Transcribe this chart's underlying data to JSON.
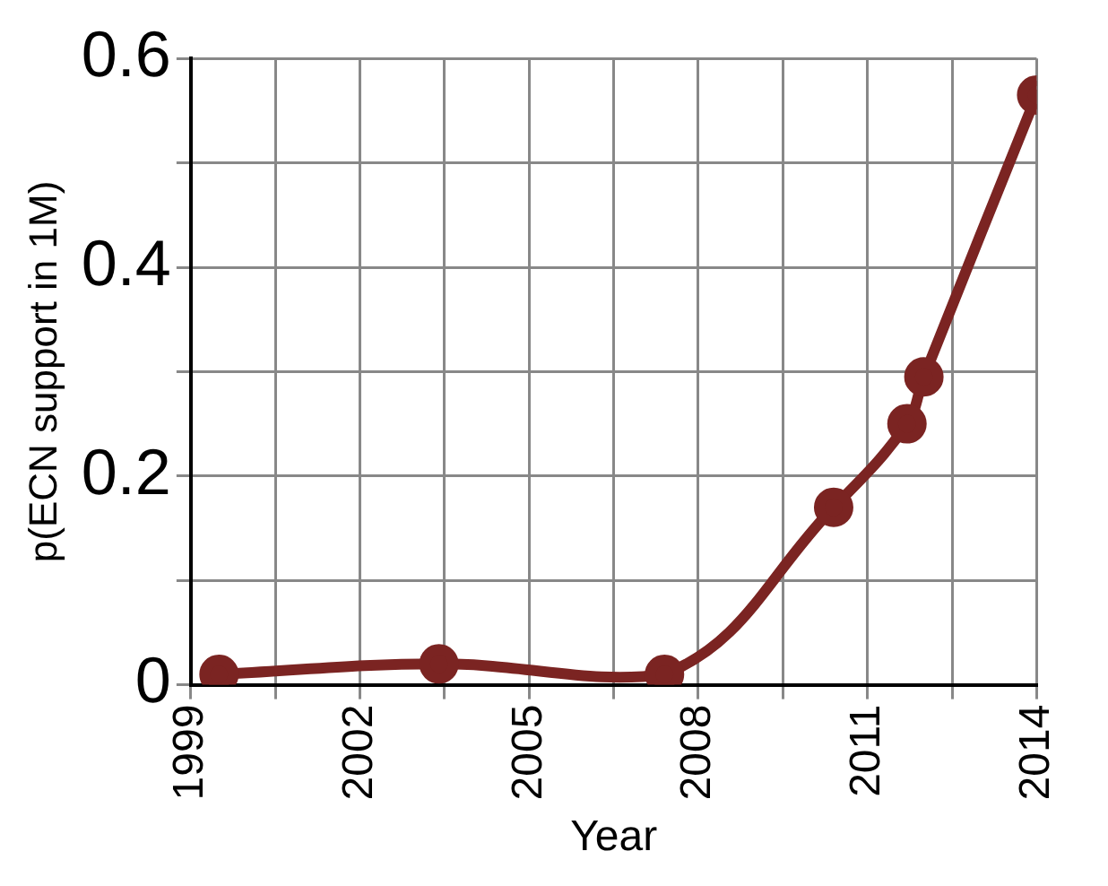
{
  "chart_data": {
    "type": "line",
    "xlabel": "Year",
    "ylabel": "p(ECN support in 1M)",
    "x": [
      1999.5,
      2003.4,
      2007.4,
      2010.4,
      2011.7,
      2012,
      2014
    ],
    "series": [
      {
        "color": "#7b2422",
        "values": [
          0.01,
          0.02,
          0.01,
          0.17,
          0.25,
          0.295,
          0.565
        ]
      }
    ],
    "xlim": [
      1999,
      2014
    ],
    "xticks": [
      1999,
      {
        "value": 2000.5,
        "label": null
      },
      2002,
      {
        "value": 2003.5,
        "label": null
      },
      2005,
      {
        "value": 2006.5,
        "label": null
      },
      2008,
      {
        "value": 2009.5,
        "label": null
      },
      2011,
      {
        "value": 2012.5,
        "label": null
      },
      2014
    ],
    "ylim": [
      0,
      0.6
    ],
    "yticks": [
      0,
      {
        "value": 0.1,
        "label": null
      },
      0.2,
      {
        "value": 0.3,
        "label": null
      },
      0.4,
      {
        "value": 0.5,
        "label": null
      },
      0.6
    ],
    "grid": true,
    "legend": false,
    "marker": "circle",
    "line_style": "solid"
  }
}
